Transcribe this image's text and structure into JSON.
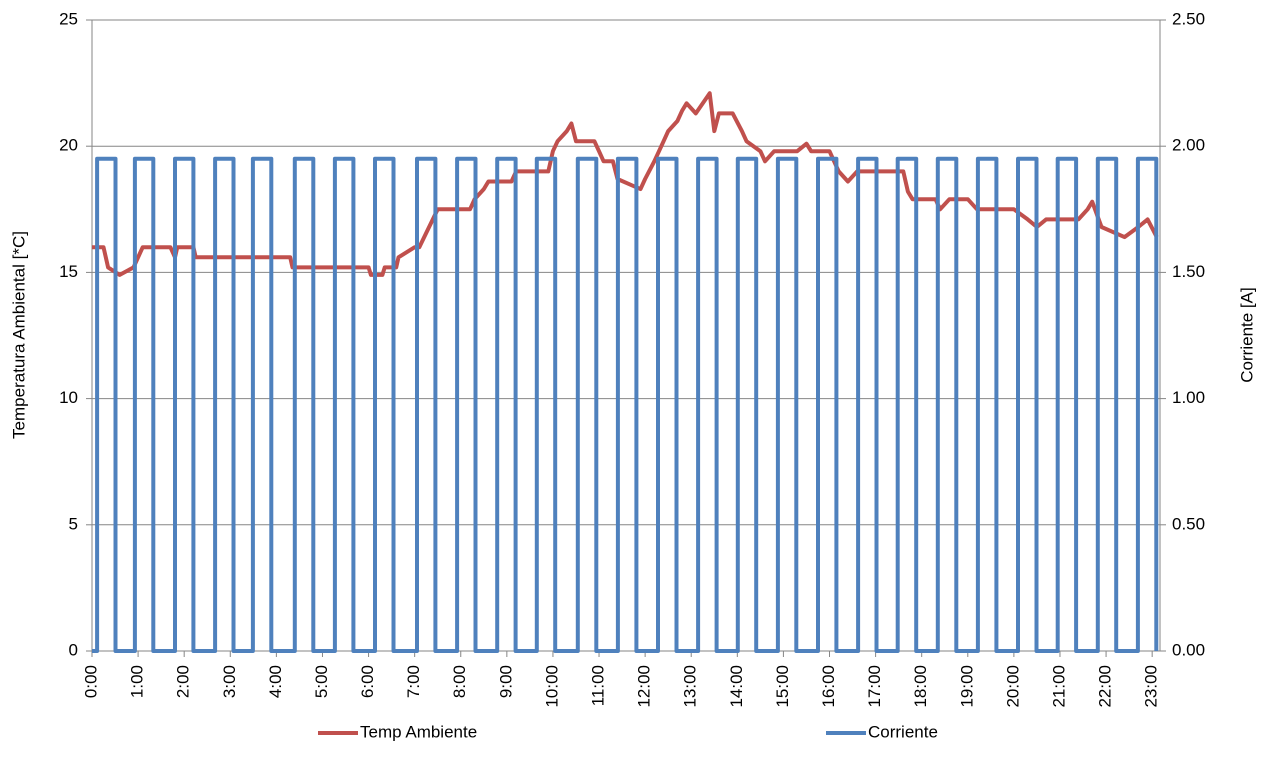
{
  "chart_data": {
    "type": "line",
    "y_label": "Temperatura Ambiental [*C]",
    "y2_label": "Corriente [A]",
    "xlim": [
      0,
      23.17
    ],
    "xticks": [
      {
        "value": 0,
        "label": "0:00"
      },
      {
        "value": 1,
        "label": "1:00"
      },
      {
        "value": 2,
        "label": "2:00"
      },
      {
        "value": 3,
        "label": "3:00"
      },
      {
        "value": 4,
        "label": "4:00"
      },
      {
        "value": 5,
        "label": "5:00"
      },
      {
        "value": 6,
        "label": "6:00"
      },
      {
        "value": 7,
        "label": "7:00"
      },
      {
        "value": 8,
        "label": "8:00"
      },
      {
        "value": 9,
        "label": "9:00"
      },
      {
        "value": 10,
        "label": "10:00"
      },
      {
        "value": 11,
        "label": "11:00"
      },
      {
        "value": 12,
        "label": "12:00"
      },
      {
        "value": 13,
        "label": "13:00"
      },
      {
        "value": 14,
        "label": "14:00"
      },
      {
        "value": 15,
        "label": "15:00"
      },
      {
        "value": 16,
        "label": "16:00"
      },
      {
        "value": 17,
        "label": "17:00"
      },
      {
        "value": 18,
        "label": "18:00"
      },
      {
        "value": 19,
        "label": "19:00"
      },
      {
        "value": 20,
        "label": "20:00"
      },
      {
        "value": 21,
        "label": "21:00"
      },
      {
        "value": 22,
        "label": "22:00"
      },
      {
        "value": 23,
        "label": "23:00"
      }
    ],
    "ylim": [
      0,
      25
    ],
    "yticks": [
      0,
      5,
      10,
      15,
      20,
      25
    ],
    "y2lim": [
      0,
      2.5
    ],
    "y2ticks": [
      {
        "value": 0,
        "label": "0.00"
      },
      {
        "value": 0.5,
        "label": "0.50"
      },
      {
        "value": 1,
        "label": "1.00"
      },
      {
        "value": 1.5,
        "label": "1.50"
      },
      {
        "value": 2,
        "label": "2.00"
      },
      {
        "value": 2.5,
        "label": "2.50"
      }
    ],
    "grid": true,
    "legend": "bottom",
    "series": [
      {
        "name": "Temp Ambiente",
        "color": "#c0504d",
        "x": [
          0,
          0.25,
          0.35,
          0.6,
          0.9,
          1.0,
          1.1,
          1.7,
          1.8,
          1.85,
          2.2,
          2.25,
          4.3,
          4.35,
          6.0,
          6.05,
          6.3,
          6.35,
          6.6,
          6.65,
          7.0,
          7.1,
          7.5,
          8.2,
          8.3,
          8.5,
          8.6,
          9.1,
          9.2,
          9.9,
          9.95,
          10.0,
          10.1,
          10.3,
          10.4,
          10.5,
          10.9,
          11.0,
          11.1,
          11.3,
          11.4,
          11.9,
          12.0,
          12.2,
          12.3,
          12.4,
          12.5,
          12.7,
          12.8,
          12.9,
          13.1,
          13.4,
          13.5,
          13.6,
          13.9,
          14.1,
          14.2,
          14.5,
          14.6,
          14.8,
          15.3,
          15.5,
          15.6,
          16.0,
          16.1,
          16.2,
          16.4,
          16.6,
          17.6,
          17.7,
          17.8,
          18.3,
          18.4,
          18.6,
          19.0,
          19.2,
          20.0,
          20.3,
          20.5,
          20.7,
          21.4,
          21.6,
          21.7,
          21.9,
          22.4,
          22.7,
          22.9,
          23.1
        ],
        "values": [
          16,
          16,
          15.2,
          14.9,
          15.2,
          15.6,
          16,
          16,
          15.6,
          16,
          16,
          15.6,
          15.6,
          15.2,
          15.2,
          14.9,
          14.9,
          15.2,
          15.2,
          15.6,
          16,
          16,
          17.5,
          17.5,
          17.9,
          18.3,
          18.6,
          18.6,
          19,
          19,
          19.4,
          19.8,
          20.2,
          20.6,
          20.9,
          20.2,
          20.2,
          19.8,
          19.4,
          19.4,
          18.7,
          18.3,
          18.7,
          19.4,
          19.8,
          20.2,
          20.6,
          21,
          21.4,
          21.7,
          21.3,
          22.1,
          20.6,
          21.3,
          21.3,
          20.6,
          20.2,
          19.8,
          19.4,
          19.8,
          19.8,
          20.1,
          19.8,
          19.8,
          19.4,
          19,
          18.6,
          19,
          19,
          18.2,
          17.9,
          17.9,
          17.5,
          17.9,
          17.9,
          17.5,
          17.5,
          17.1,
          16.8,
          17.1,
          17.1,
          17.5,
          17.8,
          16.8,
          16.4,
          16.8,
          17.1,
          16.4
        ]
      },
      {
        "name": "Corriente",
        "color": "#4f81bd",
        "axis": "y2",
        "x": [
          0,
          0.11,
          0.11,
          0.51,
          0.51,
          0.93,
          0.93,
          1.33,
          1.33,
          1.8,
          1.8,
          2.2,
          2.2,
          2.67,
          2.67,
          3.07,
          3.07,
          3.49,
          3.49,
          3.89,
          3.89,
          4.4,
          4.4,
          4.8,
          4.8,
          5.27,
          5.27,
          5.67,
          5.67,
          6.14,
          6.14,
          6.54,
          6.54,
          7.05,
          7.05,
          7.45,
          7.45,
          7.92,
          7.92,
          8.32,
          8.32,
          8.79,
          8.79,
          9.19,
          9.19,
          9.65,
          9.65,
          10.05,
          10.05,
          10.54,
          10.54,
          10.94,
          10.94,
          11.41,
          11.41,
          11.81,
          11.81,
          12.28,
          12.28,
          12.68,
          12.68,
          13.15,
          13.15,
          13.55,
          13.55,
          14.01,
          14.01,
          14.41,
          14.41,
          14.88,
          14.88,
          15.28,
          15.28,
          15.75,
          15.75,
          16.15,
          16.15,
          16.62,
          16.62,
          17.02,
          17.02,
          17.48,
          17.48,
          17.88,
          17.88,
          18.35,
          18.35,
          18.75,
          18.75,
          19.22,
          19.22,
          19.62,
          19.62,
          20.09,
          20.09,
          20.49,
          20.49,
          20.95,
          20.95,
          21.35,
          21.35,
          21.82,
          21.82,
          22.22,
          22.22,
          22.69,
          22.69,
          23.09,
          23.09
        ],
        "values": [
          0,
          0,
          1.95,
          1.95,
          0,
          0,
          1.95,
          1.95,
          0,
          0,
          1.95,
          1.95,
          0,
          0,
          1.95,
          1.95,
          0,
          0,
          1.95,
          1.95,
          0,
          0,
          1.95,
          1.95,
          0,
          0,
          1.95,
          1.95,
          0,
          0,
          1.95,
          1.95,
          0,
          0,
          1.95,
          1.95,
          0,
          0,
          1.95,
          1.95,
          0,
          0,
          1.95,
          1.95,
          0,
          0,
          1.95,
          1.95,
          0,
          0,
          1.95,
          1.95,
          0,
          0,
          1.95,
          1.95,
          0,
          0,
          1.95,
          1.95,
          0,
          0,
          1.95,
          1.95,
          0,
          0,
          1.95,
          1.95,
          0,
          0,
          1.95,
          1.95,
          0,
          0,
          1.95,
          1.95,
          0,
          0,
          1.95,
          1.95,
          0,
          0,
          1.95,
          1.95,
          0,
          0,
          1.95,
          1.95,
          0,
          0,
          1.95,
          1.95,
          0,
          0,
          1.95,
          1.95,
          0,
          0,
          1.95,
          1.95,
          0,
          0,
          1.95,
          1.95,
          0,
          0,
          1.95,
          1.95,
          0
        ]
      }
    ]
  }
}
